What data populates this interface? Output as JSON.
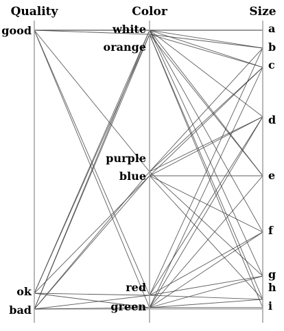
{
  "chart_data": {
    "type": "parallel-categories",
    "title": "",
    "axes": [
      {
        "name": "Quality",
        "categories": [
          "good",
          "ok",
          "bad"
        ]
      },
      {
        "name": "Color",
        "categories": [
          "white",
          "orange",
          "purple",
          "blue",
          "red",
          "green"
        ]
      },
      {
        "name": "Size",
        "categories": [
          "a",
          "b",
          "c",
          "d",
          "e",
          "f",
          "g",
          "h",
          "i"
        ]
      }
    ],
    "links_quality_color": [
      [
        "good",
        "white"
      ],
      [
        "good",
        "white"
      ],
      [
        "good",
        "orange"
      ],
      [
        "good",
        "purple"
      ],
      [
        "good",
        "red"
      ],
      [
        "good",
        "green"
      ],
      [
        "ok",
        "white"
      ],
      [
        "ok",
        "orange"
      ],
      [
        "ok",
        "blue"
      ],
      [
        "ok",
        "red"
      ],
      [
        "ok",
        "green"
      ],
      [
        "bad",
        "white"
      ],
      [
        "bad",
        "orange"
      ],
      [
        "bad",
        "purple"
      ],
      [
        "bad",
        "blue"
      ],
      [
        "bad",
        "green"
      ],
      [
        "bad",
        "red"
      ]
    ],
    "links_color_size": [
      [
        "white",
        "a"
      ],
      [
        "white",
        "b"
      ],
      [
        "white",
        "c"
      ],
      [
        "white",
        "d"
      ],
      [
        "white",
        "e"
      ],
      [
        "white",
        "f"
      ],
      [
        "white",
        "g"
      ],
      [
        "orange",
        "b"
      ],
      [
        "orange",
        "c"
      ],
      [
        "orange",
        "e"
      ],
      [
        "orange",
        "h"
      ],
      [
        "orange",
        "i"
      ],
      [
        "purple",
        "b"
      ],
      [
        "purple",
        "c"
      ],
      [
        "purple",
        "d"
      ],
      [
        "purple",
        "g"
      ],
      [
        "blue",
        "c"
      ],
      [
        "blue",
        "d"
      ],
      [
        "blue",
        "e"
      ],
      [
        "blue",
        "f"
      ],
      [
        "blue",
        "h"
      ],
      [
        "red",
        "b"
      ],
      [
        "red",
        "d"
      ],
      [
        "red",
        "f"
      ],
      [
        "red",
        "g"
      ],
      [
        "red",
        "h"
      ],
      [
        "green",
        "c"
      ],
      [
        "green",
        "d"
      ],
      [
        "green",
        "e"
      ],
      [
        "green",
        "f"
      ],
      [
        "green",
        "g"
      ],
      [
        "green",
        "h"
      ],
      [
        "green",
        "i"
      ]
    ],
    "colors": {
      "axis": "#a0a0a0",
      "line": "#404040",
      "frame": "#a0a0a0",
      "text": "#000000"
    }
  }
}
